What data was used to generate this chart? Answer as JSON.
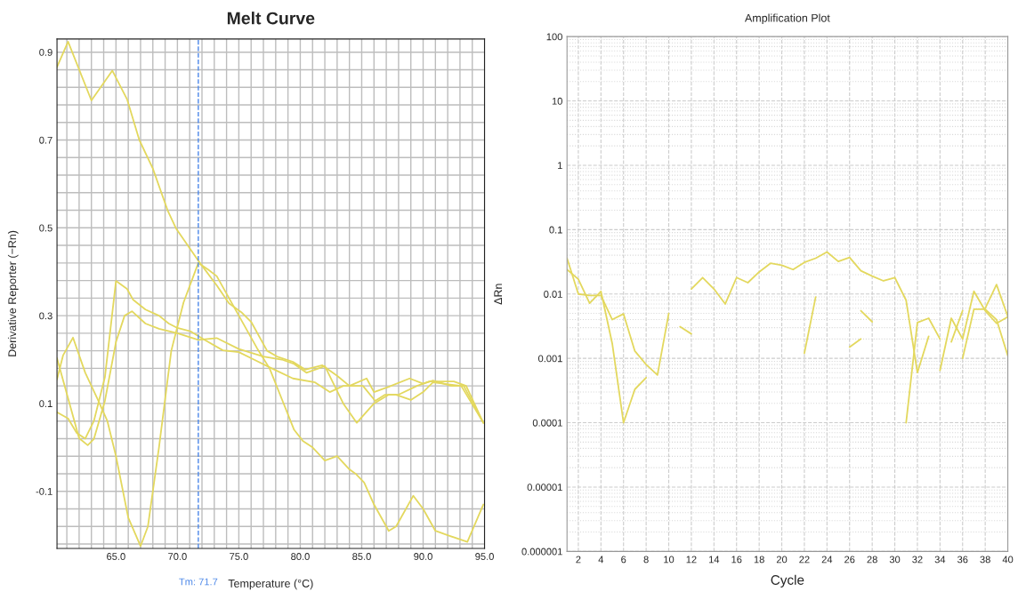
{
  "chart_data": [
    {
      "type": "line",
      "title": "Melt Curve",
      "xlabel": "Temperature (°C)",
      "ylabel": "Derivative Reporter (−Rn)",
      "xlim": [
        60.2,
        95
      ],
      "ylim": [
        -0.23,
        0.93
      ],
      "grid": true,
      "line_style": "solid",
      "xticks": [
        {
          "value": 61,
          "label": null
        },
        {
          "value": 62,
          "label": null
        },
        {
          "value": 63,
          "label": null
        },
        {
          "value": 64,
          "label": null
        },
        {
          "value": 65,
          "label": "65.0"
        },
        {
          "value": 66,
          "label": null
        },
        {
          "value": 67,
          "label": null
        },
        {
          "value": 68,
          "label": null
        },
        {
          "value": 69,
          "label": null
        },
        {
          "value": 70,
          "label": "70.0"
        },
        {
          "value": 71,
          "label": null
        },
        {
          "value": 72,
          "label": null
        },
        {
          "value": 73,
          "label": null
        },
        {
          "value": 74,
          "label": null
        },
        {
          "value": 75,
          "label": "75.0"
        },
        {
          "value": 76,
          "label": null
        },
        {
          "value": 77,
          "label": null
        },
        {
          "value": 78,
          "label": null
        },
        {
          "value": 79,
          "label": null
        },
        {
          "value": 80,
          "label": "80.0"
        },
        {
          "value": 81,
          "label": null
        },
        {
          "value": 82,
          "label": null
        },
        {
          "value": 83,
          "label": null
        },
        {
          "value": 84,
          "label": null
        },
        {
          "value": 85,
          "label": "85.0"
        },
        {
          "value": 86,
          "label": null
        },
        {
          "value": 87,
          "label": null
        },
        {
          "value": 88,
          "label": null
        },
        {
          "value": 89,
          "label": null
        },
        {
          "value": 90,
          "label": "90.0"
        },
        {
          "value": 91,
          "label": null
        },
        {
          "value": 92,
          "label": null
        },
        {
          "value": 93,
          "label": null
        },
        {
          "value": 94,
          "label": null
        },
        {
          "value": 95,
          "label": "95.0"
        }
      ],
      "yticks": [
        {
          "value": -0.22,
          "label": null
        },
        {
          "value": -0.18,
          "label": null
        },
        {
          "value": -0.14,
          "label": null
        },
        {
          "value": -0.1,
          "label": "-0.1"
        },
        {
          "value": -0.06,
          "label": null
        },
        {
          "value": -0.02,
          "label": null
        },
        {
          "value": 0.02,
          "label": null
        },
        {
          "value": 0.06,
          "label": null
        },
        {
          "value": 0.1,
          "label": "0.1"
        },
        {
          "value": 0.14,
          "label": null
        },
        {
          "value": 0.18,
          "label": null
        },
        {
          "value": 0.22,
          "label": null
        },
        {
          "value": 0.26,
          "label": null
        },
        {
          "value": 0.3,
          "label": "0.3"
        },
        {
          "value": 0.34,
          "label": null
        },
        {
          "value": 0.38,
          "label": null
        },
        {
          "value": 0.42,
          "label": null
        },
        {
          "value": 0.46,
          "label": null
        },
        {
          "value": 0.5,
          "label": "0.5"
        },
        {
          "value": 0.54,
          "label": null
        },
        {
          "value": 0.58,
          "label": null
        },
        {
          "value": 0.62,
          "label": null
        },
        {
          "value": 0.66,
          "label": null
        },
        {
          "value": 0.7,
          "label": "0.7"
        },
        {
          "value": 0.74,
          "label": null
        },
        {
          "value": 0.78,
          "label": null
        },
        {
          "value": 0.82,
          "label": null
        },
        {
          "value": 0.86,
          "label": null
        },
        {
          "value": 0.9,
          "label": "0.9"
        }
      ],
      "ref_lines": [
        {
          "axis": "x",
          "value": 71.7,
          "label": "Tm: 71.7",
          "color": "#4a86e8",
          "line_style": "dashed"
        }
      ],
      "series": [
        {
          "color": "#e3d85e",
          "x": [
            60.2,
            61.1,
            63.0,
            64.7,
            65.9,
            66.9,
            68.0,
            69.2,
            69.9,
            71.7,
            73.2,
            74.2,
            75.2,
            76.0,
            77.3,
            78.1,
            79.4,
            80.4,
            81.8,
            83.0,
            84.0,
            85.4,
            86.0,
            87.2,
            88.9,
            90.0,
            90.8,
            92.3,
            93.3,
            94.9
          ],
          "values": [
            0.866,
            0.924,
            0.79,
            0.858,
            0.793,
            0.7,
            0.635,
            0.54,
            0.498,
            0.425,
            0.369,
            0.328,
            0.308,
            0.286,
            0.22,
            0.207,
            0.195,
            0.177,
            0.187,
            0.163,
            0.14,
            0.157,
            0.126,
            0.138,
            0.157,
            0.145,
            0.152,
            0.14,
            0.14,
            0.056
          ]
        },
        {
          "color": "#e3d85e",
          "x": [
            60.2,
            61.1,
            61.8,
            62.5,
            63.2,
            64.1,
            65.0,
            65.9,
            66.4,
            67.4,
            68.5,
            69.3,
            70.0,
            71.1,
            72.2,
            73.7,
            75.0,
            76.3,
            77.6,
            79.4,
            81.2,
            82.4,
            83.5,
            85.1,
            86.1,
            86.9,
            87.8,
            89.0,
            90.0,
            90.8,
            93.1,
            94.9
          ],
          "values": [
            0.08,
            0.066,
            0.033,
            0.02,
            0.06,
            0.16,
            0.379,
            0.361,
            0.336,
            0.314,
            0.3,
            0.282,
            0.272,
            0.264,
            0.245,
            0.221,
            0.217,
            0.199,
            0.181,
            0.157,
            0.148,
            0.126,
            0.14,
            0.14,
            0.106,
            0.12,
            0.12,
            0.108,
            0.126,
            0.148,
            0.14,
            0.056
          ]
        },
        {
          "color": "#e3d85e",
          "x": [
            60.2,
            62.0,
            62.7,
            63.2,
            64.1,
            65.0,
            65.7,
            66.3,
            67.4,
            68.5,
            70.0,
            71.7,
            73.2,
            75.0,
            77.0,
            78.5,
            79.5,
            80.5,
            81.5,
            82.0,
            83.5,
            84.6,
            86.0,
            87.2,
            88.0,
            89.5,
            90.5,
            92.5,
            93.5,
            94.9
          ],
          "values": [
            0.203,
            0.021,
            0.005,
            0.019,
            0.106,
            0.24,
            0.3,
            0.31,
            0.282,
            0.27,
            0.26,
            0.245,
            0.249,
            0.224,
            0.207,
            0.2,
            0.19,
            0.17,
            0.18,
            0.185,
            0.1,
            0.056,
            0.1,
            0.12,
            0.12,
            0.14,
            0.15,
            0.15,
            0.14,
            0.056
          ]
        },
        {
          "color": "#e3d85e",
          "x": [
            60.2,
            60.7,
            61.5,
            62.5,
            63.5,
            64.3,
            65.0,
            66.0,
            67.0,
            67.6,
            68.5,
            69.5,
            70.5,
            71.7,
            72.5,
            73.2,
            74.0,
            75.0,
            76.0,
            76.5,
            77.5,
            78.5,
            79.5,
            80.2,
            81.0,
            82.0,
            83.0,
            84.0,
            84.5,
            85.2,
            86.0,
            87.2,
            87.8,
            89.2,
            90.0,
            91.0,
            92.0,
            93.6,
            94.9
          ],
          "values": [
            0.155,
            0.21,
            0.25,
            0.17,
            0.11,
            0.06,
            -0.02,
            -0.16,
            -0.225,
            -0.18,
            -0.0,
            0.22,
            0.33,
            0.42,
            0.405,
            0.39,
            0.35,
            0.3,
            0.25,
            0.225,
            0.18,
            0.11,
            0.04,
            0.015,
            0.0,
            -0.03,
            -0.02,
            -0.05,
            -0.06,
            -0.08,
            -0.13,
            -0.19,
            -0.18,
            -0.11,
            -0.14,
            -0.19,
            -0.2,
            -0.215,
            -0.13
          ]
        }
      ]
    },
    {
      "type": "line",
      "title": "Amplification Plot",
      "xlabel": "Cycle",
      "ylabel": "ΔRn",
      "log": "y",
      "grid": true,
      "line_style": "solid",
      "xlim": [
        1,
        40
      ],
      "ylim": [
        1e-06,
        100
      ],
      "xticks": [
        2,
        4,
        6,
        8,
        10,
        12,
        14,
        16,
        18,
        20,
        22,
        24,
        26,
        28,
        30,
        32,
        34,
        36,
        38,
        40
      ],
      "yticks": [
        {
          "value": 1e-06,
          "label": "0.000001"
        },
        {
          "value": 1e-05,
          "label": "0.00001"
        },
        {
          "value": 0.0001,
          "label": "0.0001"
        },
        {
          "value": 0.001,
          "label": "0.001"
        },
        {
          "value": 0.01,
          "label": "0.01"
        },
        {
          "value": 0.1,
          "label": "0.1"
        },
        {
          "value": 1,
          "label": "1"
        },
        {
          "value": 10,
          "label": "10"
        },
        {
          "value": 100,
          "label": "100"
        }
      ],
      "series": [
        {
          "color": "#e3d85e",
          "x": [
            1,
            2,
            3,
            4,
            5,
            6,
            7,
            8,
            9,
            10
          ],
          "values": [
            0.036,
            0.01,
            0.0095,
            0.0095,
            0.004,
            0.0049,
            0.0013,
            0.0008,
            0.00055,
            0.005
          ]
        },
        {
          "color": "#e3d85e",
          "x": [
            1,
            2,
            3,
            4,
            5,
            6,
            7,
            8
          ],
          "values": [
            0.024,
            0.017,
            0.0072,
            0.011,
            0.0017,
            0.0001,
            0.00033,
            0.0005
          ]
        },
        {
          "color": "#e3d85e",
          "x": [
            11,
            12
          ],
          "values": [
            0.0031,
            0.0024
          ]
        },
        {
          "color": "#e3d85e",
          "x": [
            12,
            13,
            14,
            15,
            16,
            17,
            18,
            19,
            20,
            21,
            22,
            23,
            24,
            25,
            26,
            27,
            28,
            29,
            30,
            31,
            32,
            33
          ],
          "values": [
            0.012,
            0.018,
            0.012,
            0.007,
            0.018,
            0.015,
            0.022,
            0.03,
            0.028,
            0.024,
            0.031,
            0.036,
            0.045,
            0.032,
            0.037,
            0.023,
            0.019,
            0.016,
            0.018,
            0.008,
            0.0006,
            0.0022
          ]
        },
        {
          "color": "#e3d85e",
          "x": [
            31,
            32,
            33,
            34
          ],
          "values": [
            0.0001,
            0.0036,
            0.0042,
            0.002
          ]
        },
        {
          "color": "#e3d85e",
          "x": [
            34,
            35,
            36,
            37,
            38,
            39,
            40
          ],
          "values": [
            0.00065,
            0.0042,
            0.002,
            0.011,
            0.0055,
            0.0035,
            0.0044
          ]
        },
        {
          "color": "#e3d85e",
          "x": [
            35,
            36
          ],
          "values": [
            0.0018,
            0.0055
          ]
        },
        {
          "color": "#e3d85e",
          "x": [
            36,
            37,
            38,
            39,
            40
          ],
          "values": [
            0.001,
            0.0058,
            0.0058,
            0.004,
            0.0011
          ]
        },
        {
          "color": "#e3d85e",
          "x": [
            38,
            39,
            40
          ],
          "values": [
            0.006,
            0.014,
            0.0045
          ]
        },
        {
          "color": "#e3d85e",
          "x": [
            22,
            23
          ],
          "values": [
            0.0012,
            0.009
          ]
        },
        {
          "color": "#e3d85e",
          "x": [
            26,
            27
          ],
          "values": [
            0.0015,
            0.002
          ]
        },
        {
          "color": "#e3d85e",
          "x": [
            27,
            28
          ],
          "values": [
            0.0055,
            0.0037
          ]
        }
      ]
    }
  ]
}
